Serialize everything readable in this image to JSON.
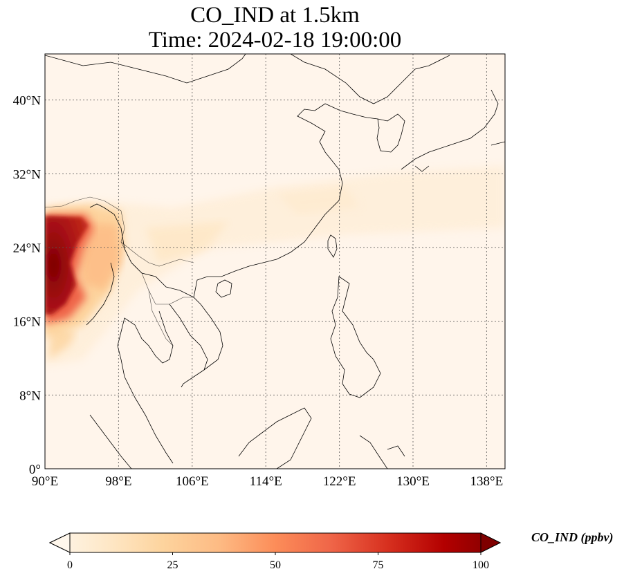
{
  "title": {
    "line1": "CO_IND at 1.5km",
    "line2": "Time: 2024-02-18 19:00:00"
  },
  "map": {
    "lon_range": [
      90,
      140
    ],
    "lat_range": [
      0,
      45
    ],
    "lon_ticks": [
      {
        "value": 90,
        "label": "90°E"
      },
      {
        "value": 98,
        "label": "98°E"
      },
      {
        "value": 106,
        "label": "106°E"
      },
      {
        "value": 114,
        "label": "114°E"
      },
      {
        "value": 122,
        "label": "122°E"
      },
      {
        "value": 130,
        "label": "130°E"
      },
      {
        "value": 138,
        "label": "138°E"
      }
    ],
    "lat_ticks": [
      {
        "value": 0,
        "label": "0°"
      },
      {
        "value": 8,
        "label": "8°N"
      },
      {
        "value": 16,
        "label": "16°N"
      },
      {
        "value": 24,
        "label": "24°N"
      },
      {
        "value": 32,
        "label": "32°N"
      },
      {
        "value": 40,
        "label": "40°N"
      }
    ],
    "gridlines": true,
    "background_color": "#fff5eb",
    "coastline_color": "#000000"
  },
  "colorbar": {
    "label": "CO_IND (ppbv)",
    "min": 0,
    "max": 100,
    "ticks": [
      {
        "value": 0,
        "label": "0"
      },
      {
        "value": 25,
        "label": "25"
      },
      {
        "value": 50,
        "label": "50"
      },
      {
        "value": 75,
        "label": "75"
      },
      {
        "value": 100,
        "label": "100"
      }
    ],
    "colormap": "OrRd",
    "colors": [
      "#fff7ec",
      "#fee8c8",
      "#fdd49e",
      "#fdbb84",
      "#fc8d59",
      "#ef6548",
      "#d7301f",
      "#b30000",
      "#7f0000"
    ]
  }
}
